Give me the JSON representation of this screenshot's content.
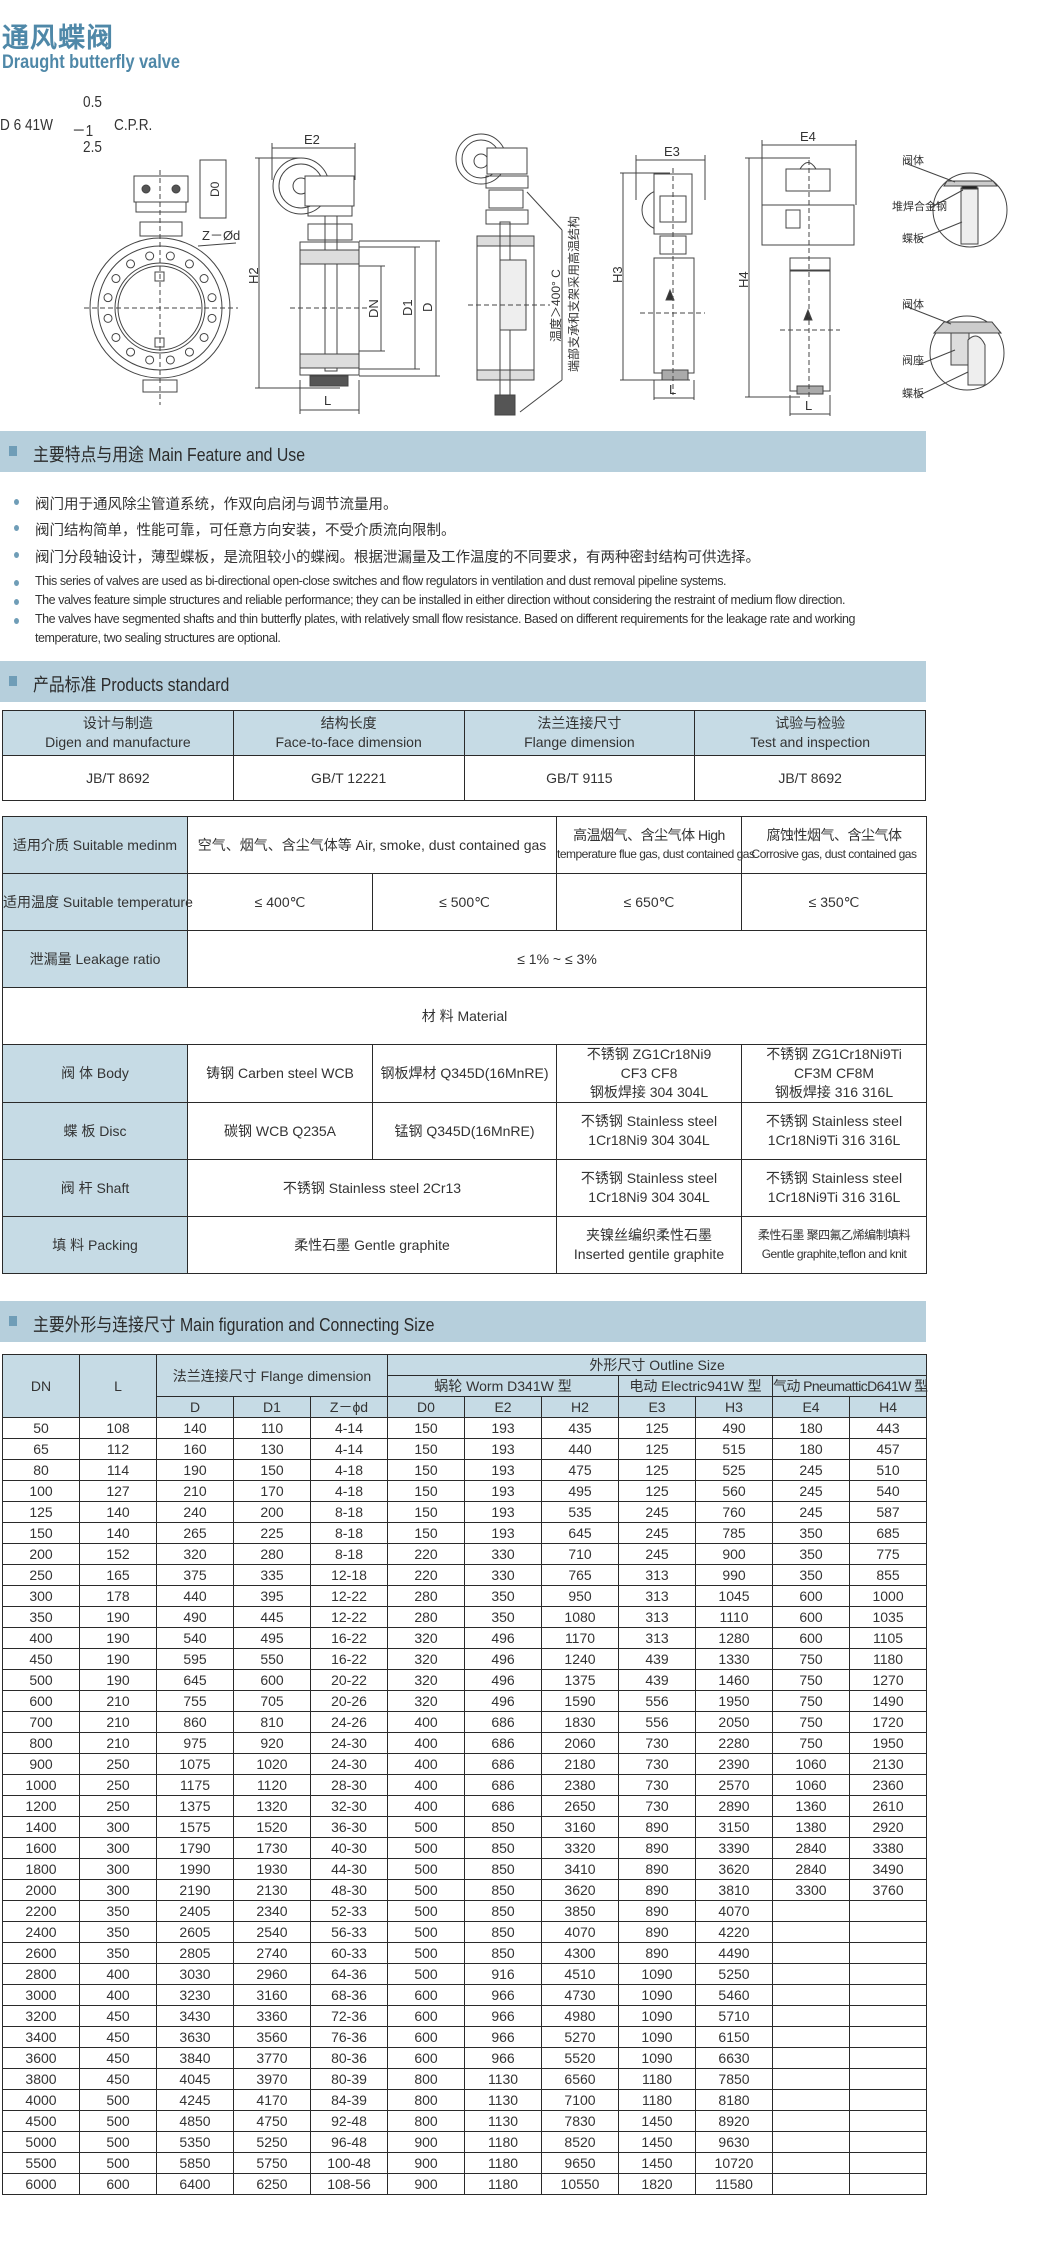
{
  "title": {
    "cn": "通风蝶阀",
    "en": "Draught butterfly valve"
  },
  "model": {
    "top": "0.5",
    "main": "D 6 41W",
    "dash": "－1",
    "suffix": "C.P.R.",
    "bottom": "2.5"
  },
  "drawing_labels": {
    "z_d": "Z－Ød",
    "d0": "D0",
    "e2": "E2",
    "h2": "H2",
    "dn": "DN",
    "d1": "D1",
    "d": "D",
    "l": "L",
    "temp_note": "温度＞400° C",
    "support_note": "端部支承和支架采用高温结构",
    "e3": "E3",
    "h3": "H3",
    "e4": "E4",
    "h4": "H4",
    "detail1": {
      "body": "阀体",
      "overlay": "堆焊合金钢",
      "disc": "蝶板"
    },
    "detail2": {
      "body": "阀体",
      "seat": "阀座",
      "disc": "蝶板"
    }
  },
  "section_feature": {
    "title": "主要特点与用途  Main Feature and Use",
    "bullets_cn": [
      "阀门用于通风除尘管道系统，作双向启闭与调节流量用。",
      "阀门结构简单，性能可靠，可任意方向安装，不受介质流向限制。",
      "阀门分段轴设计，薄型蝶板，是流阻较小的蝶阀。根据泄漏量及工作温度的不同要求，有两种密封结构可供选择。"
    ],
    "bullets_en": [
      "This series of valves are used as bi-directional open-close switches and flow regulators in ventilation and dust removal pipeline systems.",
      "The valves feature simple structures and reliable performance; they can be installed in either direction without considering the restraint of medium flow direction.",
      "The valves have segmented shafts and thin butterfly plates, with relatively small flow resistance. Based on different requirements for the leakage rate and working",
      "temperature, two sealing structures are optional."
    ]
  },
  "section_standard": {
    "title": "产品标准 Products standard",
    "headers": [
      {
        "cn": "设计与制造",
        "en": "Digen and manufacture"
      },
      {
        "cn": "结构长度",
        "en": "Face-to-face dimension"
      },
      {
        "cn": "法兰连接尺寸",
        "en": "Flange dimension"
      },
      {
        "cn": "试验与检验",
        "en": "Test and inspection"
      }
    ],
    "values": [
      "JB/T  8692",
      "GB/T 12221",
      "GB/T 9115",
      "JB/T 8692"
    ]
  },
  "materials": {
    "medium": {
      "label": "适用介质 Suitable medinm",
      "c1": "空气、烟气、含尘气体等 Air, smoke, dust contained gas",
      "c3": [
        "高温烟气、含尘气体 High",
        "temperature flue gas, dust contained gas"
      ],
      "c4": [
        "腐蚀性烟气、含尘气体",
        "Corrosive gas, dust contained gas"
      ]
    },
    "temperature": {
      "label": "适用温度 Suitable temperature",
      "values": [
        "≤ 400℃",
        "≤ 500℃",
        "≤ 650℃",
        "≤ 350℃"
      ]
    },
    "leakage": {
      "label": "泄漏量 Leakage ratio",
      "value": "≤ 1% ~ ≤ 3%"
    },
    "material_title": "材   料 Material",
    "body": {
      "label": "阀  体 Body",
      "c1": "铸钢 Carben steel WCB",
      "c2": "钢板焊材 Q345D(16MnRE)",
      "c3": [
        "不锈钢 ZG1Cr18Ni9",
        "CF3 CF8",
        "钢板焊接 304  304L"
      ],
      "c4": [
        "不锈钢 ZG1Cr18Ni9Ti",
        "CF3M  CF8M",
        "钢板焊接 316  316L"
      ]
    },
    "disc": {
      "label": "蝶  板 Disc",
      "c1": "碳钢 WCB  Q235A",
      "c2": "锰钢 Q345D(16MnRE)",
      "c3": [
        "不锈钢 Stainless steel",
        "1Cr18Ni9  304  304L"
      ],
      "c4": [
        "不锈钢 Stainless steel",
        "1Cr18Ni9Ti 316  316L"
      ]
    },
    "shaft": {
      "label": "阀  杆 Shaft",
      "c1": "不锈钢 Stainless steel  2Cr13",
      "c3": [
        "不锈钢 Stainless steel",
        "1Cr18Ni9  304  304L"
      ],
      "c4": [
        "不锈钢 Stainless steel",
        "1Cr18Ni9Ti 316  316L"
      ]
    },
    "packing": {
      "label": "填 料 Packing",
      "c1": "柔性石墨 Gentle graphite",
      "c3": [
        "夹镍丝编织柔性石墨",
        "Inserted gentile graphite"
      ],
      "c4": [
        "柔性石墨 聚四氟乙烯编制填料",
        "Gentle graphite,teflon and knit"
      ]
    }
  },
  "section_size": {
    "title": "主要外形与连接尺寸 Main figuration and Connecting Size",
    "header": {
      "dn": "DN",
      "l": "L",
      "flange": "法兰连接尺寸 Flange dimension",
      "outline": "外形尺寸 Outline Size",
      "worm": "蜗轮 Worm D341W 型",
      "electric": "电动 Electric941W 型",
      "pneumatic": "气动 PneumatticD641W 型",
      "cols": [
        "D",
        "D1",
        "Z－ϕd",
        "D0",
        "E2",
        "H2",
        "E3",
        "H3",
        "E4",
        "H4"
      ]
    },
    "rows": [
      [
        "50",
        "108",
        "140",
        "110",
        "4-14",
        "150",
        "193",
        "435",
        "125",
        "490",
        "180",
        "443"
      ],
      [
        "65",
        "112",
        "160",
        "130",
        "4-14",
        "150",
        "193",
        "440",
        "125",
        "515",
        "180",
        "457"
      ],
      [
        "80",
        "114",
        "190",
        "150",
        "4-18",
        "150",
        "193",
        "475",
        "125",
        "525",
        "245",
        "510"
      ],
      [
        "100",
        "127",
        "210",
        "170",
        "4-18",
        "150",
        "193",
        "495",
        "125",
        "560",
        "245",
        "540"
      ],
      [
        "125",
        "140",
        "240",
        "200",
        "8-18",
        "150",
        "193",
        "535",
        "245",
        "760",
        "245",
        "587"
      ],
      [
        "150",
        "140",
        "265",
        "225",
        "8-18",
        "150",
        "193",
        "645",
        "245",
        "785",
        "350",
        "685"
      ],
      [
        "200",
        "152",
        "320",
        "280",
        "8-18",
        "220",
        "330",
        "710",
        "245",
        "900",
        "350",
        "775"
      ],
      [
        "250",
        "165",
        "375",
        "335",
        "12-18",
        "220",
        "330",
        "765",
        "313",
        "990",
        "350",
        "855"
      ],
      [
        "300",
        "178",
        "440",
        "395",
        "12-22",
        "280",
        "350",
        "950",
        "313",
        "1045",
        "600",
        "1000"
      ],
      [
        "350",
        "190",
        "490",
        "445",
        "12-22",
        "280",
        "350",
        "1080",
        "313",
        "1110",
        "600",
        "1035"
      ],
      [
        "400",
        "190",
        "540",
        "495",
        "16-22",
        "320",
        "496",
        "1170",
        "313",
        "1280",
        "600",
        "1105"
      ],
      [
        "450",
        "190",
        "595",
        "550",
        "16-22",
        "320",
        "496",
        "1240",
        "439",
        "1330",
        "750",
        "1180"
      ],
      [
        "500",
        "190",
        "645",
        "600",
        "20-22",
        "320",
        "496",
        "1375",
        "439",
        "1460",
        "750",
        "1270"
      ],
      [
        "600",
        "210",
        "755",
        "705",
        "20-26",
        "320",
        "496",
        "1590",
        "556",
        "1950",
        "750",
        "1490"
      ],
      [
        "700",
        "210",
        "860",
        "810",
        "24-26",
        "400",
        "686",
        "1830",
        "556",
        "2050",
        "750",
        "1720"
      ],
      [
        "800",
        "210",
        "975",
        "920",
        "24-30",
        "400",
        "686",
        "2060",
        "730",
        "2280",
        "750",
        "1950"
      ],
      [
        "900",
        "250",
        "1075",
        "1020",
        "24-30",
        "400",
        "686",
        "2180",
        "730",
        "2390",
        "1060",
        "2130"
      ],
      [
        "1000",
        "250",
        "1175",
        "1120",
        "28-30",
        "400",
        "686",
        "2380",
        "730",
        "2570",
        "1060",
        "2360"
      ],
      [
        "1200",
        "250",
        "1375",
        "1320",
        "32-30",
        "400",
        "686",
        "2650",
        "730",
        "2890",
        "1360",
        "2610"
      ],
      [
        "1400",
        "300",
        "1575",
        "1520",
        "36-30",
        "500",
        "850",
        "3160",
        "890",
        "3150",
        "1380",
        "2920"
      ],
      [
        "1600",
        "300",
        "1790",
        "1730",
        "40-30",
        "500",
        "850",
        "3320",
        "890",
        "3390",
        "2840",
        "3380"
      ],
      [
        "1800",
        "300",
        "1990",
        "1930",
        "44-30",
        "500",
        "850",
        "3410",
        "890",
        "3620",
        "2840",
        "3490"
      ],
      [
        "2000",
        "300",
        "2190",
        "2130",
        "48-30",
        "500",
        "850",
        "3620",
        "890",
        "3810",
        "3300",
        "3760"
      ],
      [
        "2200",
        "350",
        "2405",
        "2340",
        "52-33",
        "500",
        "850",
        "3850",
        "890",
        "4070",
        "",
        ""
      ],
      [
        "2400",
        "350",
        "2605",
        "2540",
        "56-33",
        "500",
        "850",
        "4070",
        "890",
        "4220",
        "",
        ""
      ],
      [
        "2600",
        "350",
        "2805",
        "2740",
        "60-33",
        "500",
        "850",
        "4300",
        "890",
        "4490",
        "",
        ""
      ],
      [
        "2800",
        "400",
        "3030",
        "2960",
        "64-36",
        "500",
        "916",
        "4510",
        "1090",
        "5250",
        "",
        ""
      ],
      [
        "3000",
        "400",
        "3230",
        "3160",
        "68-36",
        "600",
        "966",
        "4730",
        "1090",
        "5460",
        "",
        ""
      ],
      [
        "3200",
        "450",
        "3430",
        "3360",
        "72-36",
        "600",
        "966",
        "4980",
        "1090",
        "5710",
        "",
        ""
      ],
      [
        "3400",
        "450",
        "3630",
        "3560",
        "76-36",
        "600",
        "966",
        "5270",
        "1090",
        "6150",
        "",
        ""
      ],
      [
        "3600",
        "450",
        "3840",
        "3770",
        "80-36",
        "600",
        "966",
        "5520",
        "1090",
        "6630",
        "",
        ""
      ],
      [
        "3800",
        "450",
        "4045",
        "3970",
        "80-39",
        "800",
        "1130",
        "6560",
        "1180",
        "7850",
        "",
        ""
      ],
      [
        "4000",
        "500",
        "4245",
        "4170",
        "84-39",
        "800",
        "1130",
        "7100",
        "1180",
        "8180",
        "",
        ""
      ],
      [
        "4500",
        "500",
        "4850",
        "4750",
        "92-48",
        "800",
        "1130",
        "7830",
        "1450",
        "8920",
        "",
        ""
      ],
      [
        "5000",
        "500",
        "5350",
        "5250",
        "96-48",
        "900",
        "1180",
        "8520",
        "1450",
        "9630",
        "",
        ""
      ],
      [
        "5500",
        "500",
        "5850",
        "5750",
        "100-48",
        "900",
        "1180",
        "9650",
        "1450",
        "10720",
        "",
        ""
      ],
      [
        "6000",
        "600",
        "6400",
        "6250",
        "108-56",
        "900",
        "1180",
        "10550",
        "1820",
        "11580",
        "",
        ""
      ]
    ]
  },
  "colors": {
    "heading": "#4f88a8",
    "section_bar": "#b6cfdc",
    "header_cell": "#c6dbe5",
    "bullet": "#6f9db7"
  }
}
